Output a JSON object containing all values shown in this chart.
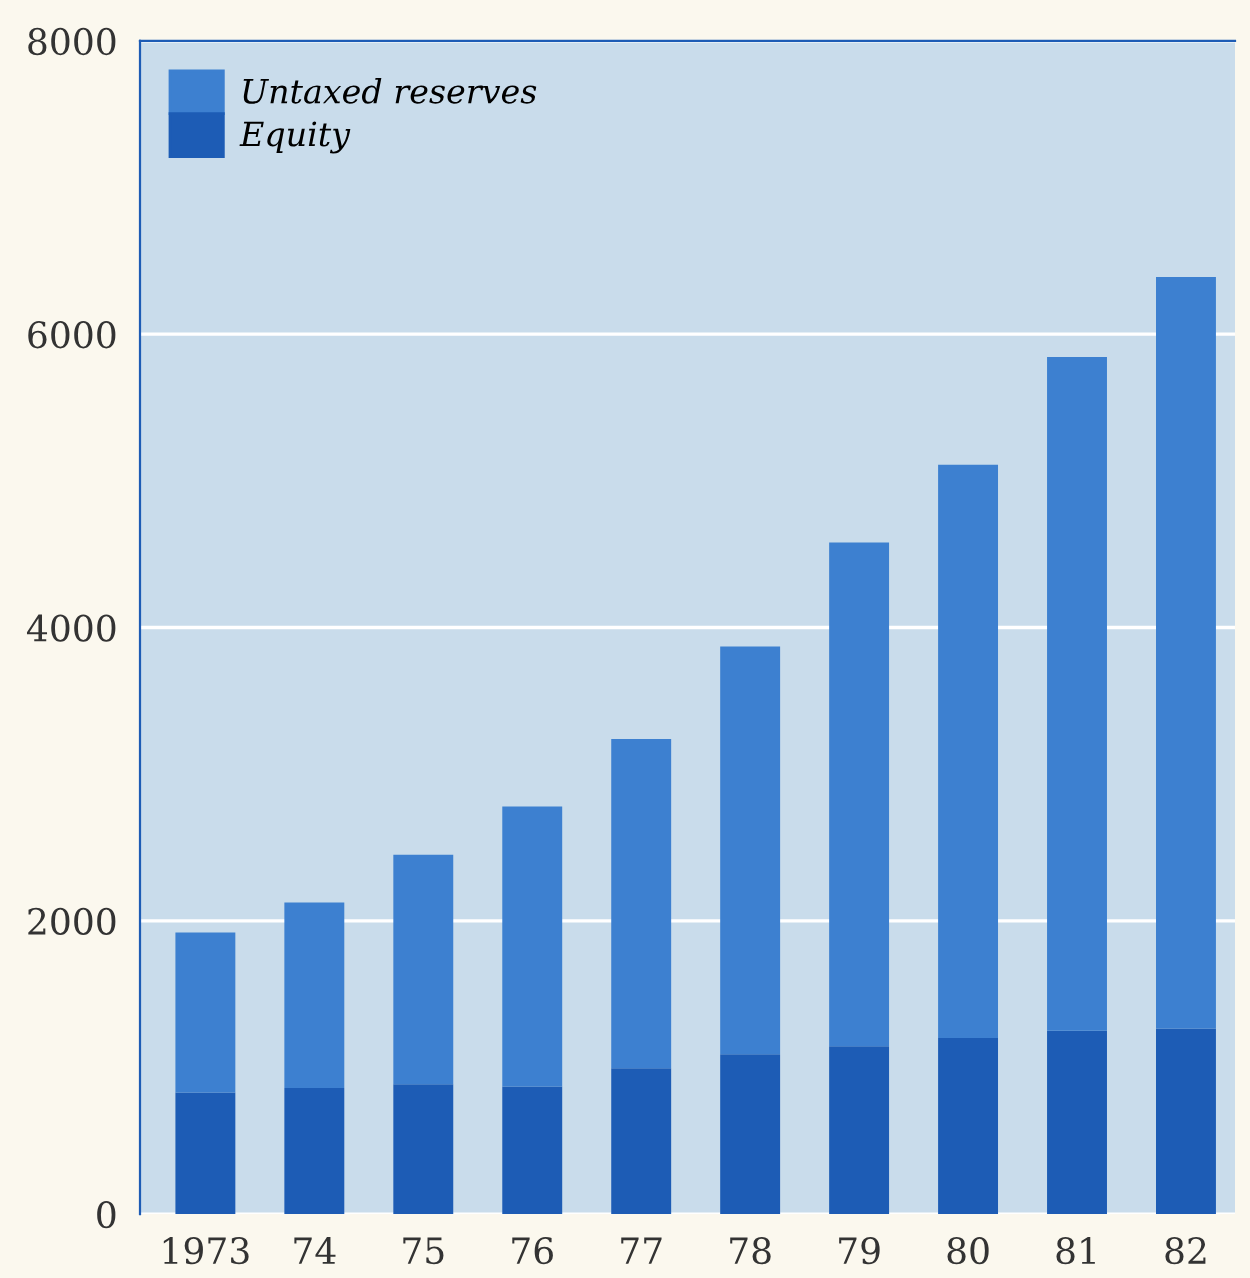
{
  "chart_data": {
    "type": "bar",
    "stacked": true,
    "categories": [
      "1973",
      "74",
      "75",
      "76",
      "77",
      "78",
      "79",
      "80",
      "81",
      "82"
    ],
    "series": [
      {
        "name": "Equity",
        "color": "#1d5cb5",
        "values": [
          830,
          860,
          885,
          870,
          995,
          1090,
          1145,
          1200,
          1250,
          1265
        ]
      },
      {
        "name": "Untaxed reserves",
        "color": "#3d80d0",
        "values": [
          1090,
          1265,
          1565,
          1910,
          2245,
          2780,
          3435,
          3910,
          4595,
          5125
        ]
      }
    ],
    "ylim": [
      0,
      8000
    ],
    "yticks": [
      0,
      2000,
      4000,
      6000,
      8000
    ],
    "grid": "y",
    "legend": "top left"
  }
}
